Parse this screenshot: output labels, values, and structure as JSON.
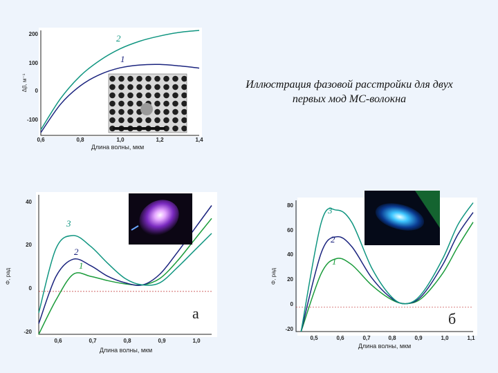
{
  "caption": {
    "line1": "Иллюстрация фазовой расстройки для двух",
    "line2": "первых мод МС-волокна"
  },
  "colors": {
    "curve1": "#1a9b3a",
    "curve2": "#1a237e",
    "curve3": "#0f9580",
    "top_curve1": "#1a237e",
    "top_curve2": "#0f9580",
    "zero_line": "#c03030",
    "axis": "#222222"
  },
  "images": {
    "pcf_cross_section": "photonic-crystal-fiber-micrograph",
    "mode_purple": "purple-mode-glow",
    "mode_blue": "blue-mode-glow"
  },
  "chart_data": [
    {
      "id": "top",
      "type": "line",
      "xlabel": "Длина волны, мкм",
      "ylabel": "Δβ, м⁻¹",
      "xlim": [
        0.6,
        1.4
      ],
      "ylim": [
        -150,
        220
      ],
      "xticks": [
        "0,6",
        "0,8",
        "1,0",
        "1,2",
        "1,4"
      ],
      "yticks": [
        "-100",
        "0",
        "100",
        "200"
      ],
      "x": [
        0.6,
        0.7,
        0.8,
        0.9,
        1.0,
        1.1,
        1.2,
        1.3,
        1.4
      ],
      "series": [
        {
          "name": "1",
          "values": [
            -140,
            -40,
            25,
            65,
            88,
            98,
            100,
            95,
            87
          ]
        },
        {
          "name": "2",
          "values": [
            -130,
            -20,
            60,
            115,
            155,
            182,
            200,
            213,
            220
          ]
        }
      ]
    },
    {
      "id": "a",
      "panel_label": "а",
      "type": "line",
      "xlabel": "Длина волны, мкм",
      "ylabel": "Φ, рад",
      "xlim": [
        0.55,
        1.05
      ],
      "ylim": [
        -20,
        45
      ],
      "xticks": [
        "0,6",
        "0,7",
        "0,8",
        "0,9",
        "1,0"
      ],
      "yticks": [
        "-20",
        "0",
        "20",
        "40"
      ],
      "x": [
        0.55,
        0.6,
        0.65,
        0.7,
        0.75,
        0.8,
        0.85,
        0.9,
        0.95,
        1.0,
        1.05
      ],
      "series": [
        {
          "name": "1",
          "values": [
            -20,
            -4,
            8,
            7,
            5,
            3.5,
            3,
            6,
            14,
            24,
            34
          ]
        },
        {
          "name": "2",
          "values": [
            -15,
            7,
            15,
            12,
            7,
            4,
            3,
            8,
            18,
            29,
            40
          ]
        },
        {
          "name": "3",
          "values": [
            -10,
            20,
            26,
            21,
            13,
            6,
            3,
            4,
            11,
            19,
            27
          ]
        }
      ]
    },
    {
      "id": "b",
      "panel_label": "б",
      "type": "line",
      "xlabel": "Длина волны, мкм",
      "ylabel": "Φ, рад",
      "xlim": [
        0.4,
        1.1
      ],
      "ylim": [
        -20,
        88
      ],
      "xticks": [
        "0,5",
        "0,6",
        "0,7",
        "0,8",
        "0,9",
        "1,0",
        "1,1"
      ],
      "yticks": [
        "-20",
        "0",
        "20",
        "40",
        "60",
        "80"
      ],
      "x": [
        0.42,
        0.5,
        0.56,
        0.62,
        0.7,
        0.78,
        0.84,
        0.9,
        0.98,
        1.04,
        1.1
      ],
      "series": [
        {
          "name": "1",
          "values": [
            -20,
            28,
            40,
            35,
            18,
            6,
            3,
            8,
            28,
            50,
            70
          ]
        },
        {
          "name": "2",
          "values": [
            -20,
            45,
            58,
            50,
            24,
            7,
            3,
            10,
            35,
            60,
            78
          ]
        },
        {
          "name": "3",
          "values": [
            -20,
            70,
            80,
            70,
            32,
            8,
            3,
            12,
            40,
            68,
            86
          ]
        }
      ]
    }
  ]
}
